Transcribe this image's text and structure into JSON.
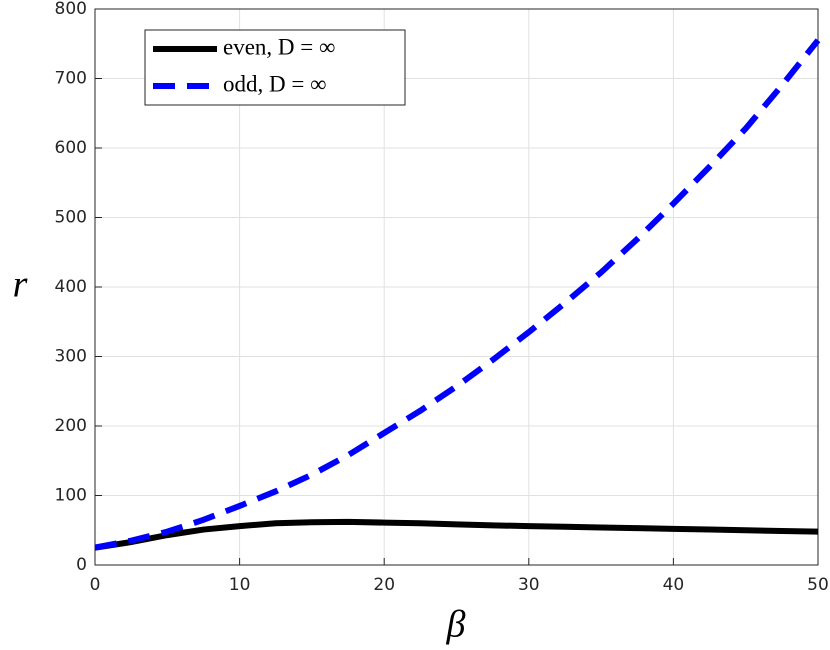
{
  "chart_data": {
    "type": "line",
    "xlabel": "β",
    "ylabel": "r",
    "x": [
      0,
      2.5,
      5,
      7.5,
      10,
      12.5,
      15,
      17.5,
      20,
      22.5,
      25,
      27.5,
      30,
      32.5,
      35,
      37.5,
      40,
      42.5,
      45,
      47.5,
      50
    ],
    "series": [
      {
        "name": "even, D = ∞",
        "color": "#000000",
        "dash": false,
        "values": [
          25,
          33,
          43,
          51,
          56,
          60,
          61.5,
          62,
          61,
          60,
          58.5,
          57,
          56,
          55,
          54,
          53,
          52,
          51,
          50,
          49,
          48
        ]
      },
      {
        "name": "odd, D = ∞",
        "color": "#0000ff",
        "dash": true,
        "values": [
          25,
          35,
          48,
          65,
          85,
          106,
          130,
          158,
          190,
          222,
          257,
          295,
          335,
          377,
          421,
          469,
          520,
          573,
          628,
          690,
          755
        ]
      }
    ],
    "xlim": [
      0,
      50
    ],
    "xticks": [
      0,
      10,
      20,
      30,
      40,
      50
    ],
    "ylim": [
      0,
      800
    ],
    "yticks": [
      0,
      100,
      200,
      300,
      400,
      500,
      600,
      700,
      800
    ],
    "grid": true,
    "legend": "upper left"
  }
}
